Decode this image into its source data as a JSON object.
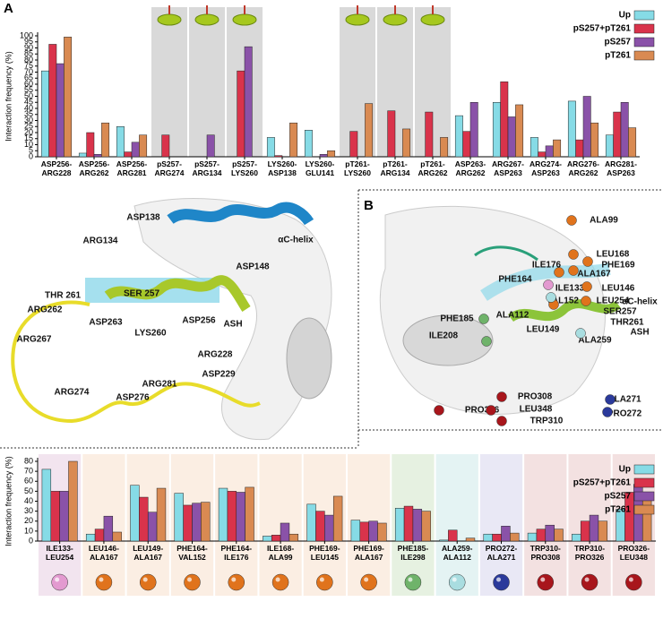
{
  "chart_data": [
    {
      "type": "bar",
      "y_label": "Interaction frequency (%)",
      "categories": [
        "ASP256-ARG228",
        "ASP256-ARG262",
        "ASP256-ARG281",
        "pS257-ARG274",
        "pS257-ARG134",
        "pS257-LYS260",
        "LYS260-ASP138",
        "LYS260-GLU141",
        "pT261-LYS260",
        "pT261-ARG134",
        "pT261-ARG262",
        "ASP263-ARG262",
        "ARG267-ASP263",
        "ARG274-ASP263",
        "ARG276-ARG262",
        "ARG281-ASP263"
      ],
      "series": [
        {
          "name": "Up",
          "color": "#86dbe6",
          "values": [
            71,
            3,
            25,
            0,
            0,
            0,
            16,
            22,
            0,
            0,
            0,
            34,
            45,
            16,
            46,
            18
          ]
        },
        {
          "name": "pS257+pT261",
          "color": "#d9334b",
          "values": [
            93,
            20,
            4,
            18,
            0,
            71,
            1,
            0,
            21,
            38,
            37,
            21,
            62,
            4,
            14,
            37
          ]
        },
        {
          "name": "pS257",
          "color": "#8a52a8",
          "values": [
            77,
            2,
            12,
            0,
            18,
            91,
            0,
            2,
            0,
            0,
            0,
            45,
            33,
            9,
            50,
            45
          ]
        },
        {
          "name": "pT261",
          "color": "#d98a52",
          "values": [
            99,
            28,
            18,
            0,
            0,
            0,
            28,
            5,
            44,
            23,
            16,
            0,
            43,
            14,
            28,
            24
          ]
        }
      ],
      "ylim": [
        0,
        100
      ],
      "yticks": [
        0,
        5,
        10,
        15,
        20,
        25,
        30,
        35,
        40,
        45,
        50,
        55,
        60,
        65,
        70,
        75,
        80,
        85,
        90,
        95,
        100
      ],
      "legend": "upper right",
      "shaded": [
        3,
        4,
        5,
        8,
        9,
        10
      ],
      "shade_color": "#d9d9d9"
    },
    {
      "type": "bar",
      "y_label": "Interaction frequency (%)",
      "categories": [
        "ILE133-LEU254",
        "LEU146-ALA167",
        "LEU149-ALA167",
        "PHE164-VAL152",
        "PHE164-ILE176",
        "ILE168-ALA99",
        "PHE169-LEU145",
        "PHE169-ALA167",
        "PHE185-ILE298",
        "ALA259-ALA112",
        "PRO272-ALA271",
        "TRP310-PRO308",
        "TRP310-PRO326",
        "PRO326-LEU348"
      ],
      "series": [
        {
          "name": "Up",
          "color": "#86dbe6",
          "values": [
            72,
            7,
            56,
            48,
            53,
            5,
            37,
            21,
            33,
            1,
            7,
            8,
            7,
            32
          ]
        },
        {
          "name": "pS257+pT261",
          "color": "#d9334b",
          "values": [
            50,
            12,
            44,
            36,
            50,
            6,
            30,
            19,
            35,
            11,
            7,
            12,
            20,
            49
          ]
        },
        {
          "name": "pS257",
          "color": "#8a52a8",
          "values": [
            50,
            25,
            29,
            38,
            49,
            18,
            26,
            20,
            32,
            0,
            15,
            16,
            26,
            57
          ]
        },
        {
          "name": "pT261",
          "color": "#d98a52",
          "values": [
            80,
            9,
            53,
            39,
            54,
            7,
            45,
            18,
            30,
            3,
            8,
            12,
            20,
            43
          ]
        }
      ],
      "ylim": [
        0,
        80
      ],
      "yticks": [
        0,
        10,
        20,
        30,
        40,
        50,
        60,
        70,
        80
      ],
      "legend": "upper right",
      "background_colors": [
        "#f2e4ef",
        "#fbeee3",
        "#fbeee3",
        "#fbeee3",
        "#fbeee3",
        "#fbeee3",
        "#fbeee3",
        "#fbeee3",
        "#e6f1e1",
        "#e4f3f3",
        "#e9e8f5",
        "#f3e1e1",
        "#f3e1e1",
        "#f3e1e1"
      ],
      "sphere_colors": [
        "#e39ad0",
        "#e0731c",
        "#e0731c",
        "#e0731c",
        "#e0731c",
        "#e0731c",
        "#e0731c",
        "#e0731c",
        "#6fb36a",
        "#a9dde0",
        "#2b3a9b",
        "#a8161c",
        "#a8161c",
        "#a8161c"
      ]
    }
  ],
  "panel_a": {
    "letter": "A",
    "labels": [
      "ASP138",
      "ARG134",
      "THR 261",
      "SER 257",
      "ARG262",
      "ARG267",
      "ASP263",
      "LYS260",
      "ASP256",
      "ASH",
      "ASP148",
      "αC-helix",
      "ARG228",
      "ASP229",
      "ARG281",
      "ARG274",
      "ASP276"
    ]
  },
  "panel_b": {
    "letter": "B",
    "labels": [
      "ALA99",
      "LEU168",
      "PHE169",
      "ILE176",
      "ALA167",
      "PHE164",
      "ILE133",
      "LEU146",
      "αC-helix",
      "VAL152",
      "LEU254",
      "SER257",
      "THR261",
      "PHE185",
      "ALA112",
      "LEU149",
      "ALA259",
      "ASH",
      "ILE208",
      "PRO308",
      "PRO326",
      "LEU348",
      "TRP310",
      "ALA271",
      "PRO272"
    ]
  }
}
